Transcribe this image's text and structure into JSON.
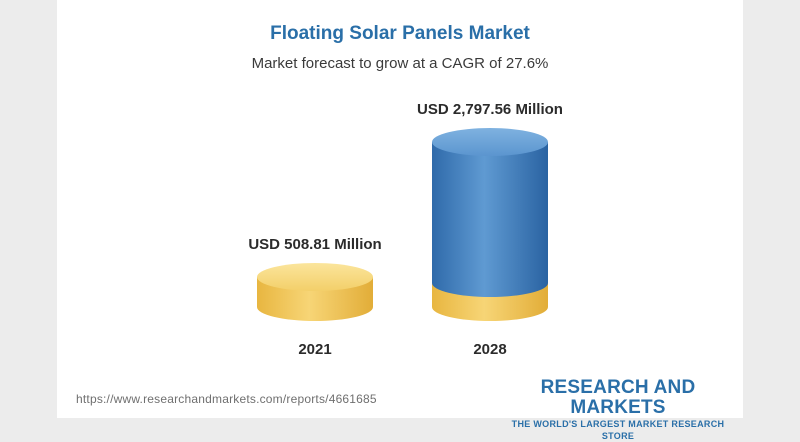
{
  "chart_data": {
    "type": "bar",
    "title": "Floating Solar Panels Market",
    "subtitle": "Market forecast to grow at a CAGR of 27.6%",
    "categories": [
      "2021",
      "2028"
    ],
    "values": [
      508.81,
      2797.56
    ],
    "value_labels": [
      "USD 508.81 Million",
      "USD 2,797.56 Million"
    ],
    "unit": "USD Million",
    "ylim": [
      0,
      2797.56
    ],
    "grid": false,
    "legend": "none"
  },
  "colors": {
    "title": "#2a6fa8",
    "subtitle": "#3a3a3a",
    "bar_2021": "#f2c75c",
    "bar_2028_blue": "#3f7fc0",
    "bar_2028_base": "#f2c75c",
    "brand": "#2a6fa8"
  },
  "footer": {
    "url": "https://www.researchandmarkets.com/reports/4661685",
    "brand_name": "RESEARCH AND MARKETS",
    "brand_tagline": "THE WORLD'S LARGEST MARKET RESEARCH STORE"
  }
}
